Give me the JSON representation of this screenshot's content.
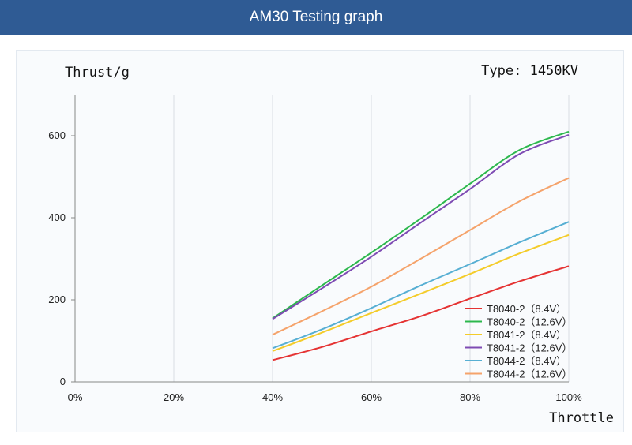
{
  "header": {
    "title": "AM30 Testing graph"
  },
  "type_label": "Type: 1450KV",
  "chart_data": {
    "type": "line",
    "title": "AM30 Testing graph",
    "ylabel": "Thrust/g",
    "xlabel": "Throttle",
    "xlim": [
      0,
      100
    ],
    "ylim": [
      0,
      700
    ],
    "x_ticks": [
      "0%",
      "20%",
      "40%",
      "60%",
      "80%",
      "100%"
    ],
    "y_ticks": [
      "0",
      "200",
      "400",
      "600"
    ],
    "grid": "vertical",
    "legend_position": "bottom-right",
    "x": [
      40,
      50,
      60,
      70,
      80,
      90,
      100
    ],
    "series": [
      {
        "name": "T8040-2（8.4V）",
        "color": "#e53333",
        "values": [
          53,
          85,
          123,
          160,
          203,
          245,
          282
        ]
      },
      {
        "name": "T8040-2（12.6V）",
        "color": "#2db84d",
        "values": [
          155,
          235,
          315,
          398,
          483,
          565,
          610
        ]
      },
      {
        "name": "T8041-2（8.4V）",
        "color": "#f4cc2a",
        "values": [
          75,
          120,
          168,
          215,
          263,
          313,
          358
        ]
      },
      {
        "name": "T8041-2（12.6V）",
        "color": "#7e4bb3",
        "values": [
          153,
          228,
          305,
          388,
          470,
          555,
          602
        ]
      },
      {
        "name": "T8044-2（8.4V）",
        "color": "#57afd3",
        "values": [
          82,
          128,
          180,
          235,
          287,
          340,
          390
        ]
      },
      {
        "name": "T8044-2（12.6V）",
        "color": "#f5a36b",
        "values": [
          115,
          172,
          232,
          300,
          370,
          440,
          497
        ]
      }
    ]
  }
}
